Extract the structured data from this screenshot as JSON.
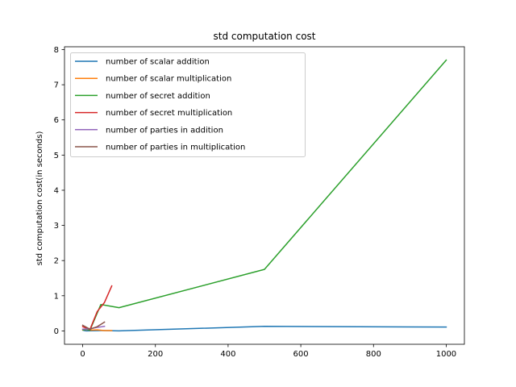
{
  "chart_data": {
    "type": "line",
    "title": "std computation cost",
    "xlabel": "",
    "ylabel": "std computation cost(in seconds)",
    "xlim": [
      -50,
      1050
    ],
    "ylim": [
      -0.38,
      8.08
    ],
    "xticks": [
      0,
      200,
      400,
      600,
      800,
      1000
    ],
    "yticks": [
      0,
      1,
      2,
      3,
      4,
      5,
      6,
      7,
      8
    ],
    "grid": false,
    "legend_position": "upper-left",
    "series": [
      {
        "name": "number of scalar addition",
        "color": "#1f77b4",
        "x": [
          1,
          5,
          10,
          50,
          100,
          500,
          1000
        ],
        "y": [
          0.02,
          0.01,
          0.0,
          0.01,
          0.0,
          0.13,
          0.11
        ]
      },
      {
        "name": "number of scalar multiplication",
        "color": "#ff7f0e",
        "x": [
          0,
          10,
          20,
          40,
          60,
          80
        ],
        "y": [
          0.03,
          0.04,
          0.02,
          0.03,
          0.01,
          0.01
        ]
      },
      {
        "name": "number of secret addition",
        "color": "#2ca02c",
        "x": [
          1,
          10,
          20,
          50,
          100,
          500,
          1000
        ],
        "y": [
          0.03,
          0.05,
          0.02,
          0.75,
          0.66,
          1.75,
          7.7
        ]
      },
      {
        "name": "number of secret multiplication",
        "color": "#d62728",
        "x": [
          0,
          20,
          40,
          60,
          80
        ],
        "y": [
          0.12,
          0.04,
          0.55,
          0.81,
          1.28
        ]
      },
      {
        "name": "number of parties in addition",
        "color": "#9467bd",
        "x": [
          0,
          20,
          40,
          60
        ],
        "y": [
          0.05,
          0.06,
          0.1,
          0.13
        ]
      },
      {
        "name": "number of parties in multiplication",
        "color": "#8c564b",
        "x": [
          0,
          20,
          40,
          60
        ],
        "y": [
          0.16,
          0.05,
          0.12,
          0.25
        ]
      }
    ]
  }
}
